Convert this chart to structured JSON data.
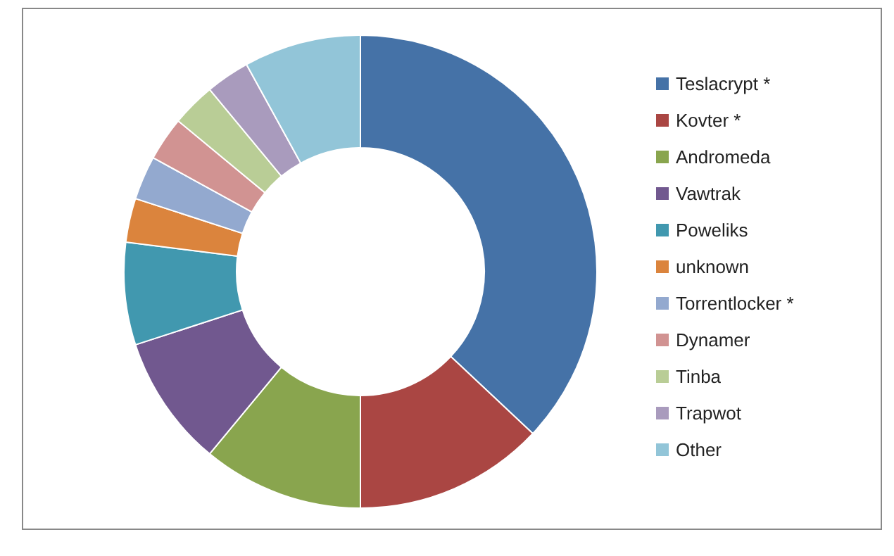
{
  "chart_data": {
    "type": "donut",
    "categories": [
      "Teslacrypt *",
      "Kovter *",
      "Andromeda",
      "Vawtrak",
      "Poweliks",
      "unknown",
      "Torrentlocker *",
      "Dynamer",
      "Tinba",
      "Trapwot",
      "Other"
    ],
    "values": [
      37,
      13,
      11,
      9,
      7,
      3,
      3,
      3,
      3,
      3,
      8
    ],
    "colors": [
      "#4572a7",
      "#aa4643",
      "#89a54e",
      "#71588f",
      "#4198af",
      "#db843d",
      "#93a9cf",
      "#d19392",
      "#b9cd96",
      "#a99bbd",
      "#92c5d8"
    ],
    "legend": "right"
  }
}
